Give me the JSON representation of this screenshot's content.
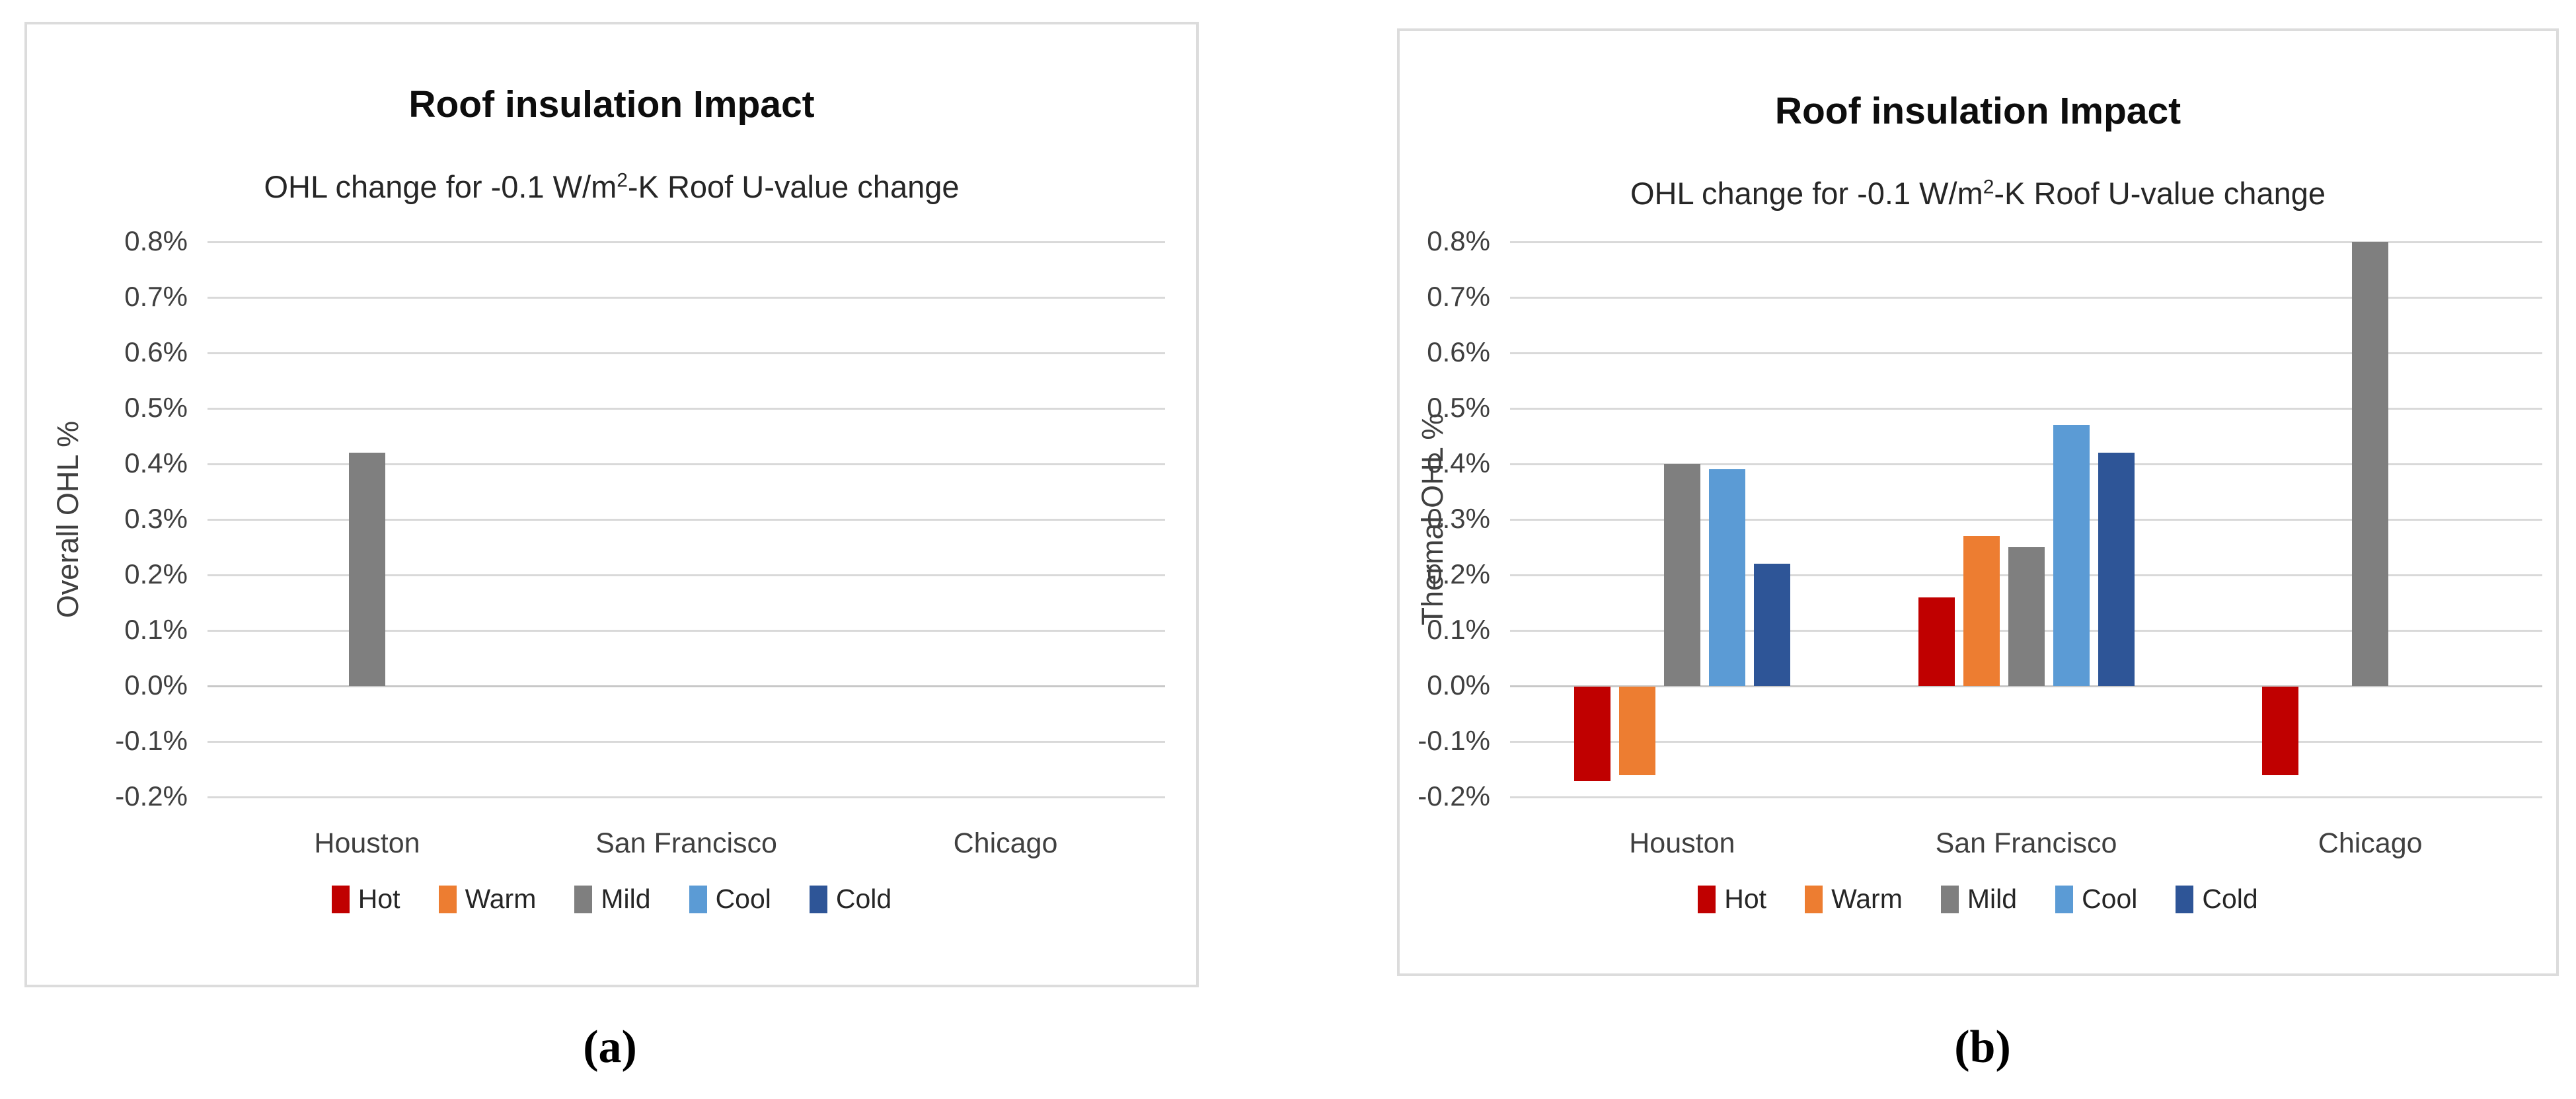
{
  "figure": {
    "panels": [
      {
        "caption": "(a)",
        "title": "Roof insulation Impact",
        "subtitle_pre": "OHL change for -0.1 W/m",
        "subtitle_sup": "2",
        "subtitle_post": "-K Roof U-value change",
        "y_axis_label": "Overall OHL %"
      },
      {
        "caption": "(b)",
        "title": "Roof insulation Impact",
        "subtitle_pre": "OHL change for -0.1 W/m",
        "subtitle_sup": "2",
        "subtitle_post": "-K Roof U-value change",
        "y_axis_label": "Thermal OHL %"
      }
    ]
  },
  "chart_data": [
    {
      "type": "bar",
      "title": "Roof insulation Impact",
      "subtitle": "OHL change for -0.1 W/m2-K Roof U-value change",
      "xlabel": "",
      "ylabel": "Overall OHL %",
      "value_unit": "%",
      "categories": [
        "Houston",
        "San Francisco",
        "Chicago"
      ],
      "series": [
        {
          "name": "Hot",
          "color": "#c00000",
          "values": [
            0,
            0,
            0
          ]
        },
        {
          "name": "Warm",
          "color": "#ed7d31",
          "values": [
            0,
            0,
            0
          ]
        },
        {
          "name": "Mild",
          "color": "#7f7f7f",
          "values": [
            0.42,
            0,
            0
          ]
        },
        {
          "name": "Cool",
          "color": "#5b9bd5",
          "values": [
            0,
            0,
            0
          ]
        },
        {
          "name": "Cold",
          "color": "#2e5597",
          "values": [
            0,
            0,
            0
          ]
        }
      ],
      "ylim": [
        -0.2,
        0.8
      ],
      "y_tick_labels": [
        "0.8%",
        "0.7%",
        "0.6%",
        "0.5%",
        "0.4%",
        "0.3%",
        "0.2%",
        "0.1%",
        "0.0%",
        "-0.1%",
        "-0.2%"
      ],
      "grid": true,
      "legend_position": "bottom"
    },
    {
      "type": "bar",
      "title": "Roof insulation Impact",
      "subtitle": "OHL change for -0.1 W/m2-K Roof U-value change",
      "xlabel": "",
      "ylabel": "Thermal OHL %",
      "value_unit": "%",
      "categories": [
        "Houston",
        "San Francisco",
        "Chicago"
      ],
      "series": [
        {
          "name": "Hot",
          "color": "#c00000",
          "values": [
            -0.17,
            0.16,
            -0.16
          ]
        },
        {
          "name": "Warm",
          "color": "#ed7d31",
          "values": [
            -0.16,
            0.27,
            0
          ]
        },
        {
          "name": "Mild",
          "color": "#7f7f7f",
          "values": [
            0.4,
            0.25,
            0.8
          ]
        },
        {
          "name": "Cool",
          "color": "#5b9bd5",
          "values": [
            0.39,
            0.47,
            0
          ]
        },
        {
          "name": "Cold",
          "color": "#2e5597",
          "values": [
            0.22,
            0.42,
            0
          ]
        }
      ],
      "ylim": [
        -0.2,
        0.8
      ],
      "y_tick_labels": [
        "0.8%",
        "0.7%",
        "0.6%",
        "0.5%",
        "0.4%",
        "0.3%",
        "0.2%",
        "0.1%",
        "0.0%",
        "-0.1%",
        "-0.2%"
      ],
      "grid": true,
      "legend_position": "bottom"
    }
  ]
}
